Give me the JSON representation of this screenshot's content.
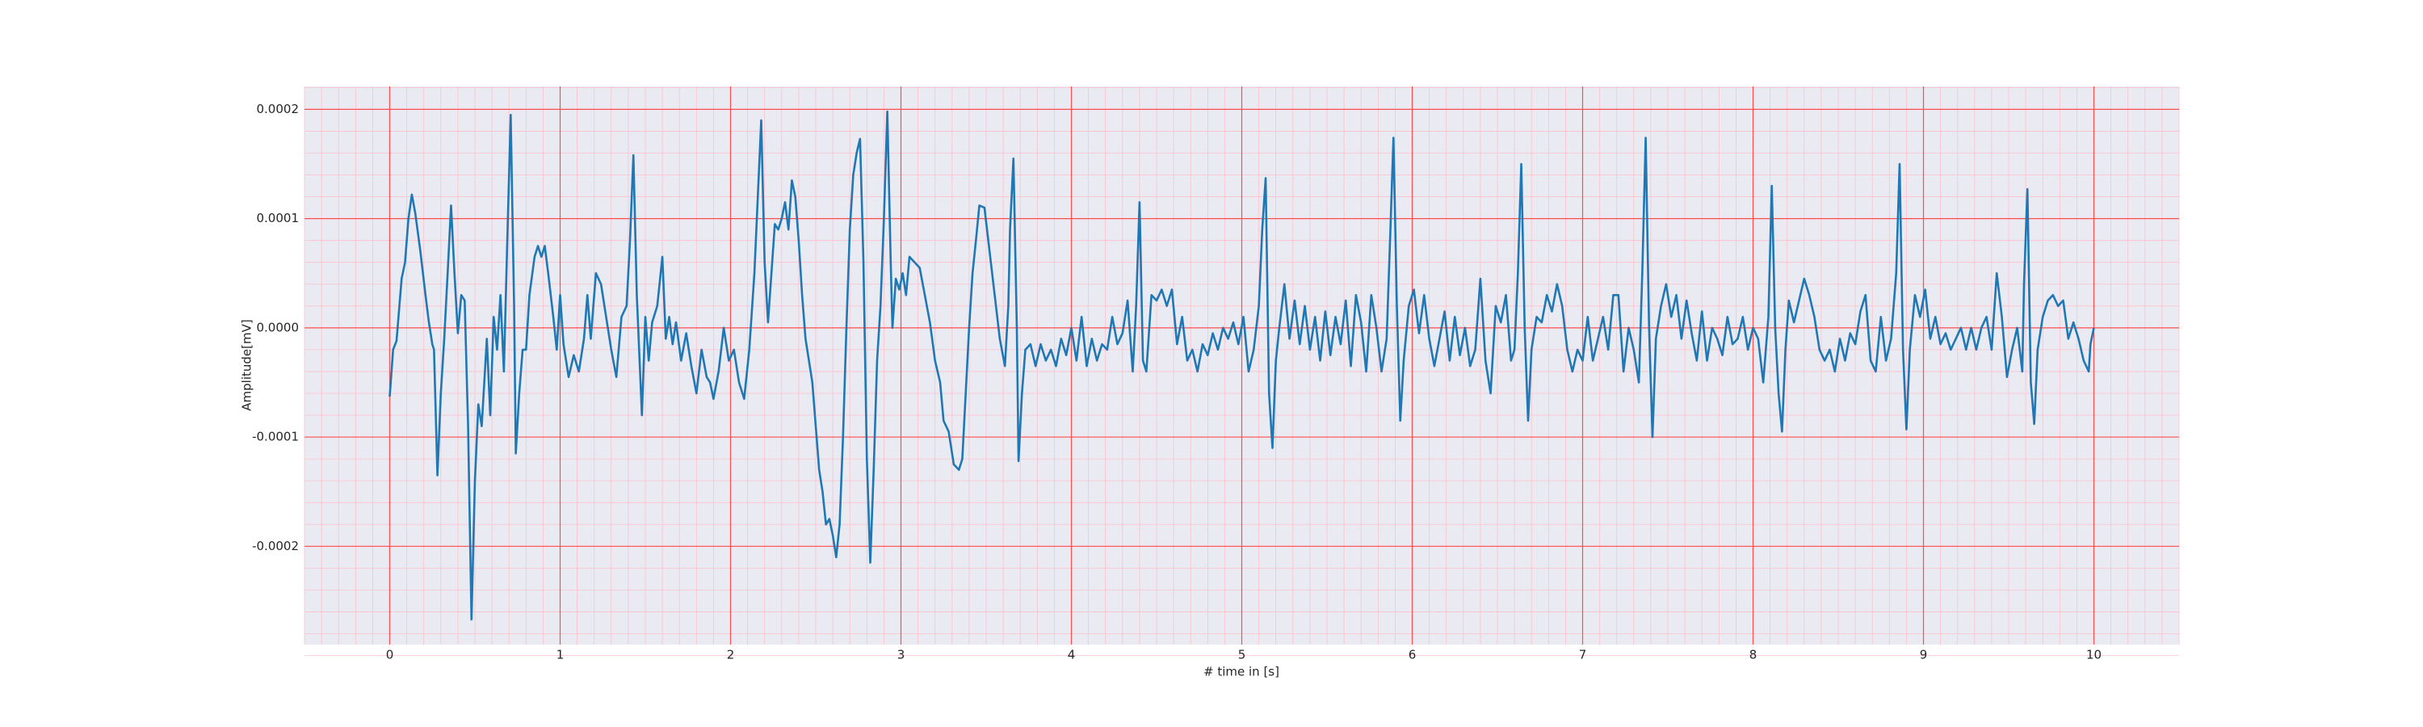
{
  "chart_data": {
    "type": "line",
    "xlabel": "# time in [s]",
    "ylabel": "Amplitude[mV]",
    "xlim": [
      -0.5,
      10.5
    ],
    "ylim": [
      -0.00029,
      0.000221
    ],
    "xticks": [
      0,
      1,
      2,
      3,
      4,
      5,
      6,
      7,
      8,
      9,
      10
    ],
    "yticks": [
      {
        "value": -0.0002,
        "label": "-0.0002"
      },
      {
        "value": -0.0001,
        "label": "-0.0001"
      },
      {
        "value": 0,
        "label": "0.0000"
      },
      {
        "value": 0.0001,
        "label": "0.0001"
      },
      {
        "value": 0.0002,
        "label": "0.0002"
      }
    ],
    "grid": true,
    "minor_grid": true,
    "background": "#eaeaf2",
    "grid_color": "#ff4d4d",
    "minor_grid_color": "#ffc0cb",
    "x": [
      0.0,
      0.02,
      0.04,
      0.07,
      0.09,
      0.11,
      0.13,
      0.15,
      0.18,
      0.21,
      0.23,
      0.25,
      0.26,
      0.28,
      0.3,
      0.32,
      0.34,
      0.36,
      0.38,
      0.4,
      0.42,
      0.44,
      0.46,
      0.48,
      0.5,
      0.52,
      0.54,
      0.57,
      0.59,
      0.61,
      0.63,
      0.65,
      0.67,
      0.69,
      0.71,
      0.73,
      0.74,
      0.76,
      0.78,
      0.8,
      0.82,
      0.85,
      0.87,
      0.89,
      0.91,
      0.93,
      0.96,
      0.98,
      1.0,
      1.02,
      1.05,
      1.08,
      1.11,
      1.14,
      1.16,
      1.18,
      1.21,
      1.24,
      1.27,
      1.3,
      1.33,
      1.36,
      1.39,
      1.41,
      1.43,
      1.45,
      1.48,
      1.5,
      1.52,
      1.54,
      1.57,
      1.6,
      1.62,
      1.64,
      1.66,
      1.68,
      1.71,
      1.74,
      1.77,
      1.8,
      1.83,
      1.86,
      1.88,
      1.9,
      1.93,
      1.96,
      1.99,
      2.02,
      2.05,
      2.08,
      2.11,
      2.14,
      2.16,
      2.18,
      2.2,
      2.22,
      2.24,
      2.26,
      2.28,
      2.3,
      2.32,
      2.34,
      2.36,
      2.38,
      2.4,
      2.42,
      2.44,
      2.46,
      2.48,
      2.5,
      2.52,
      2.54,
      2.56,
      2.58,
      2.6,
      2.62,
      2.64,
      2.66,
      2.68,
      2.7,
      2.72,
      2.74,
      2.76,
      2.78,
      2.8,
      2.82,
      2.84,
      2.86,
      2.88,
      2.9,
      2.92,
      2.94,
      2.95,
      2.97,
      2.99,
      3.01,
      3.03,
      3.05,
      3.08,
      3.11,
      3.14,
      3.17,
      3.2,
      3.23,
      3.25,
      3.28,
      3.31,
      3.34,
      3.36,
      3.38,
      3.4,
      3.42,
      3.44,
      3.46,
      3.49,
      3.52,
      3.55,
      3.58,
      3.61,
      3.63,
      3.64,
      3.66,
      3.68,
      3.69,
      3.71,
      3.73,
      3.76,
      3.79,
      3.82,
      3.85,
      3.88,
      3.91,
      3.94,
      3.97,
      4.0,
      4.03,
      4.06,
      4.09,
      4.12,
      4.15,
      4.18,
      4.21,
      4.24,
      4.27,
      4.3,
      4.33,
      4.36,
      4.38,
      4.4,
      4.42,
      4.44,
      4.47,
      4.5,
      4.53,
      4.56,
      4.59,
      4.62,
      4.65,
      4.68,
      4.71,
      4.74,
      4.77,
      4.8,
      4.83,
      4.86,
      4.89,
      4.92,
      4.95,
      4.98,
      5.01,
      5.04,
      5.07,
      5.1,
      5.12,
      5.14,
      5.16,
      5.18,
      5.2,
      5.22,
      5.25,
      5.28,
      5.31,
      5.34,
      5.37,
      5.4,
      5.43,
      5.46,
      5.49,
      5.52,
      5.55,
      5.58,
      5.61,
      5.64,
      5.67,
      5.7,
      5.73,
      5.76,
      5.79,
      5.82,
      5.85,
      5.87,
      5.89,
      5.91,
      5.93,
      5.95,
      5.98,
      6.01,
      6.04,
      6.07,
      6.1,
      6.13,
      6.16,
      6.19,
      6.22,
      6.25,
      6.28,
      6.31,
      6.34,
      6.37,
      6.4,
      6.43,
      6.46,
      6.49,
      6.52,
      6.55,
      6.58,
      6.6,
      6.62,
      6.64,
      6.66,
      6.68,
      6.7,
      6.73,
      6.76,
      6.79,
      6.82,
      6.85,
      6.88,
      6.91,
      6.94,
      6.97,
      7.0,
      7.03,
      7.06,
      7.09,
      7.12,
      7.15,
      7.18,
      7.21,
      7.24,
      7.27,
      7.3,
      7.33,
      7.35,
      7.37,
      7.39,
      7.41,
      7.43,
      7.46,
      7.49,
      7.52,
      7.55,
      7.58,
      7.61,
      7.64,
      7.67,
      7.7,
      7.73,
      7.76,
      7.79,
      7.82,
      7.85,
      7.88,
      7.91,
      7.94,
      7.97,
      8.0,
      8.03,
      8.06,
      8.09,
      8.11,
      8.13,
      8.15,
      8.17,
      8.19,
      8.21,
      8.24,
      8.27,
      8.3,
      8.33,
      8.36,
      8.39,
      8.42,
      8.45,
      8.48,
      8.51,
      8.54,
      8.57,
      8.6,
      8.63,
      8.66,
      8.69,
      8.72,
      8.75,
      8.78,
      8.81,
      8.84,
      8.86,
      8.88,
      8.9,
      8.92,
      8.95,
      8.98,
      9.01,
      9.04,
      9.07,
      9.1,
      9.13,
      9.16,
      9.19,
      9.22,
      9.25,
      9.28,
      9.31,
      9.34,
      9.37,
      9.4,
      9.43,
      9.46,
      9.49,
      9.52,
      9.55,
      9.58,
      9.59,
      9.61,
      9.63,
      9.65,
      9.67,
      9.7,
      9.73,
      9.76,
      9.79,
      9.82,
      9.85,
      9.88,
      9.91,
      9.94,
      9.97,
      9.98,
      10.0
    ],
    "series": [
      {
        "color": "#1f77b4",
        "values": [
          -6.3e-05,
          -2e-05,
          -1.2e-05,
          4.5e-05,
          6e-05,
          0.0001,
          0.000122,
          0.000105,
          7e-05,
          3e-05,
          5e-06,
          -1.5e-05,
          -2e-05,
          -0.000135,
          -6e-05,
          -1e-05,
          5e-05,
          0.000112,
          5e-05,
          -5e-06,
          3e-05,
          2.5e-05,
          -9e-05,
          -0.000267,
          -0.00014,
          -7e-05,
          -9e-05,
          -1e-05,
          -8e-05,
          1e-05,
          -2e-05,
          3e-05,
          -4e-05,
          8e-05,
          0.000195,
          2e-05,
          -0.000115,
          -6e-05,
          -2e-05,
          -2e-05,
          3e-05,
          6.5e-05,
          7.5e-05,
          6.5e-05,
          7.5e-05,
          5e-05,
          1e-05,
          -2e-05,
          3e-05,
          -1.5e-05,
          -4.5e-05,
          -2.5e-05,
          -4e-05,
          -1e-05,
          3e-05,
          -1e-05,
          5e-05,
          4e-05,
          1e-05,
          -2e-05,
          -4.5e-05,
          1e-05,
          2e-05,
          8e-05,
          0.000158,
          3e-05,
          -8e-05,
          1e-05,
          -3e-05,
          5e-06,
          2e-05,
          6.5e-05,
          -1e-05,
          1e-05,
          -1.5e-05,
          5e-06,
          -3e-05,
          -5e-06,
          -3.5e-05,
          -6e-05,
          -2e-05,
          -4.5e-05,
          -5e-05,
          -6.5e-05,
          -4e-05,
          0,
          -3e-05,
          -2e-05,
          -5e-05,
          -6.5e-05,
          -2e-05,
          5e-05,
          0.00012,
          0.00019,
          6e-05,
          5e-06,
          5e-05,
          9.5e-05,
          9e-05,
          0.0001,
          0.000115,
          9e-05,
          0.000135,
          0.00012,
          8e-05,
          3e-05,
          -1e-05,
          -3e-05,
          -5e-05,
          -9e-05,
          -0.00013,
          -0.00015,
          -0.00018,
          -0.000175,
          -0.00019,
          -0.00021,
          -0.00018,
          -0.0001,
          0,
          9e-05,
          0.00014,
          0.00016,
          0.000173,
          6e-05,
          -0.00012,
          -0.000215,
          -0.00013,
          -3e-05,
          2e-05,
          0.0001,
          0.000198,
          6e-05,
          0,
          4.5e-05,
          3.5e-05,
          5e-05,
          3e-05,
          6.5e-05,
          6e-05,
          5.5e-05,
          3e-05,
          5e-06,
          -3e-05,
          -5e-05,
          -8.5e-05,
          -9.5e-05,
          -0.000125,
          -0.00013,
          -0.00012,
          -6e-05,
          0,
          5e-05,
          8e-05,
          0.000112,
          0.00011,
          7e-05,
          3e-05,
          -1e-05,
          -3.5e-05,
          2e-05,
          9e-05,
          0.000155,
          0,
          -0.000122,
          -6e-05,
          -2e-05,
          -1.5e-05,
          -3.5e-05,
          -1.5e-05,
          -3e-05,
          -2e-05,
          -3.5e-05,
          -1e-05,
          -2.5e-05,
          0,
          -3e-05,
          1e-05,
          -3.5e-05,
          -1e-05,
          -3e-05,
          -1.5e-05,
          -2e-05,
          1e-05,
          -1.5e-05,
          -5e-06,
          2.5e-05,
          -4e-05,
          2e-05,
          0.000115,
          -3e-05,
          -4e-05,
          3e-05,
          2.5e-05,
          3.5e-05,
          2e-05,
          3.5e-05,
          -1.5e-05,
          1e-05,
          -3e-05,
          -2e-05,
          -4e-05,
          -1.5e-05,
          -2.5e-05,
          -5e-06,
          -2e-05,
          0,
          -1e-05,
          5e-06,
          -1.5e-05,
          1e-05,
          -4e-05,
          -2e-05,
          2e-05,
          9e-05,
          0.000137,
          -6e-05,
          -0.00011,
          -3e-05,
          0,
          4e-05,
          -1e-05,
          2.5e-05,
          -1.5e-05,
          2e-05,
          -2e-05,
          1e-05,
          -3e-05,
          1.5e-05,
          -2.5e-05,
          1e-05,
          -1.5e-05,
          2.5e-05,
          -3.5e-05,
          3e-05,
          5e-06,
          -4e-05,
          3e-05,
          0,
          -4e-05,
          -1e-05,
          8e-05,
          0.000174,
          2e-05,
          -8.5e-05,
          -3e-05,
          2e-05,
          3.5e-05,
          -5e-06,
          3e-05,
          -1e-05,
          -3.5e-05,
          -1e-05,
          1.5e-05,
          -3e-05,
          1e-05,
          -2.5e-05,
          0,
          -3.5e-05,
          -2e-05,
          4.5e-05,
          -3e-05,
          -6e-05,
          2e-05,
          5e-06,
          3e-05,
          -3e-05,
          -2e-05,
          5e-05,
          0.00015,
          0,
          -8.5e-05,
          -2e-05,
          1e-05,
          5e-06,
          3e-05,
          1.5e-05,
          4e-05,
          2e-05,
          -2e-05,
          -4e-05,
          -2e-05,
          -3e-05,
          1e-05,
          -3e-05,
          -1e-05,
          1e-05,
          -2e-05,
          3e-05,
          3e-05,
          -4e-05,
          0,
          -2e-05,
          -5e-05,
          5e-05,
          0.000174,
          0,
          -0.0001,
          -1e-05,
          2e-05,
          4e-05,
          1e-05,
          3e-05,
          -1e-05,
          2.5e-05,
          -5e-06,
          -3e-05,
          1.5e-05,
          -3e-05,
          0,
          -1e-05,
          -2.5e-05,
          1e-05,
          -1.5e-05,
          -1e-05,
          1e-05,
          -2e-05,
          0,
          -1e-05,
          -5e-05,
          1e-05,
          0.00013,
          0,
          -6e-05,
          -9.5e-05,
          -2e-05,
          2.5e-05,
          5e-06,
          2.5e-05,
          4.5e-05,
          3e-05,
          1e-05,
          -2e-05,
          -3e-05,
          -2e-05,
          -4e-05,
          -1e-05,
          -3e-05,
          -5e-06,
          -1.5e-05,
          1.5e-05,
          3e-05,
          -3e-05,
          -4e-05,
          1e-05,
          -3e-05,
          -1e-05,
          5e-05,
          0.00015,
          -2e-05,
          -9.3e-05,
          -2e-05,
          3e-05,
          1e-05,
          3.5e-05,
          -1e-05,
          1e-05,
          -1.5e-05,
          -5e-06,
          -2e-05,
          -1e-05,
          0,
          -2e-05,
          0,
          -2e-05,
          0,
          1e-05,
          -2e-05,
          5e-05,
          1e-05,
          -4.5e-05,
          -2e-05,
          0,
          -4e-05,
          4e-05,
          0.000127,
          -5e-05,
          -8.8e-05,
          -2e-05,
          1e-05,
          2.5e-05,
          3e-05,
          2e-05,
          2.5e-05,
          -1e-05,
          5e-06,
          -1e-05,
          -3e-05,
          -4e-05,
          -1.5e-05,
          0
        ]
      }
    ]
  }
}
